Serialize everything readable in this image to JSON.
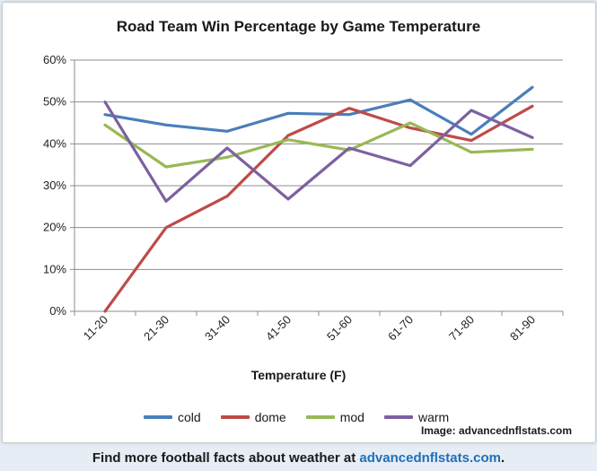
{
  "chart_data": {
    "type": "line",
    "title": "Road Team Win Percentage by Game Temperature",
    "xlabel": "Temperature (F)",
    "ylabel": "",
    "categories": [
      "11-20",
      "21-30",
      "31-40",
      "41-50",
      "51-60",
      "61-70",
      "71-80",
      "81-90"
    ],
    "ylim": [
      0,
      60
    ],
    "yticks": [
      "0%",
      "10%",
      "20%",
      "30%",
      "40%",
      "50%",
      "60%"
    ],
    "grid": "horizontal",
    "legend_position": "bottom",
    "series": [
      {
        "name": "cold",
        "color": "#4a7ebb",
        "values": [
          47,
          44.5,
          43,
          47.3,
          47,
          50.5,
          42.3,
          53.5
        ]
      },
      {
        "name": "dome",
        "color": "#be4b48",
        "values": [
          0,
          20,
          27.5,
          42,
          48.5,
          43.8,
          40.8,
          49
        ]
      },
      {
        "name": "mod",
        "color": "#98b954",
        "values": [
          44.5,
          34.5,
          36.8,
          41,
          38.5,
          45,
          38,
          38.7
        ]
      },
      {
        "name": "warm",
        "color": "#7d60a0",
        "values": [
          50,
          26.3,
          39,
          26.8,
          39,
          34.8,
          48,
          41.5
        ]
      }
    ]
  },
  "credit": "Image: advancednflstats.com",
  "footer": {
    "text": "Find more football facts about weather at ",
    "link": "advancednflstats.com",
    "suffix": "."
  }
}
